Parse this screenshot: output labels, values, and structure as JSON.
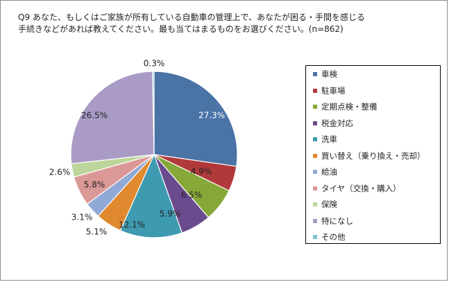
{
  "title": {
    "line1": "Q9 あなた、もしくはご家族が所有している自動車の管理上で、あなたが困る・手間を感じる",
    "line2": "手続きなどがあれば教えてください。最も当てはまるものをお選びください。(n=862)"
  },
  "chart_data": {
    "type": "pie",
    "title": "Q9 あなた、もしくはご家族が所有している自動車の管理上で、あなたが困る・手間を感じる手続きなどがあれば教えてください。最も当てはまるものをお選びください。(n=862)",
    "legend_position": "right",
    "slices": [
      {
        "label": "車検",
        "value": 27.3,
        "display": "27.3%",
        "color": "#4A73A6"
      },
      {
        "label": "駐車場",
        "value": 4.9,
        "display": "4.9%",
        "color": "#B03A3A"
      },
      {
        "label": "定期点検・整備",
        "value": 6.5,
        "display": "6.5%",
        "color": "#86A838"
      },
      {
        "label": "税金対応",
        "value": 5.9,
        "display": "5.9%",
        "color": "#6A4B8E"
      },
      {
        "label": "洗車",
        "value": 12.1,
        "display": "12.1%",
        "color": "#3E9AB0"
      },
      {
        "label": "買い替え（乗り換え・売却）",
        "value": 5.1,
        "display": "5.1%",
        "color": "#E0892F"
      },
      {
        "label": "給油",
        "value": 3.1,
        "display": "3.1%",
        "color": "#91A9D6"
      },
      {
        "label": "タイヤ（交換・購入）",
        "value": 5.8,
        "display": "5.8%",
        "color": "#DA9896"
      },
      {
        "label": "保険",
        "value": 2.6,
        "display": "2.6%",
        "color": "#BCD59A"
      },
      {
        "label": "特になし",
        "value": 26.5,
        "display": "26.5%",
        "color": "#A99BC6"
      },
      {
        "label": "その他",
        "value": 0.3,
        "display": "0.3%",
        "color": "#7FC3D6"
      }
    ]
  }
}
